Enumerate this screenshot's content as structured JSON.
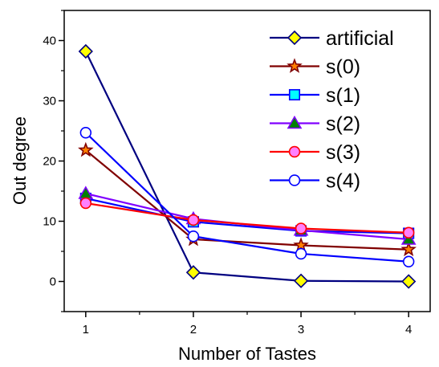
{
  "chart_data": {
    "type": "line",
    "title": "",
    "xlabel": "Number of Tastes",
    "ylabel": "Out degree",
    "xlim": [
      0.8,
      4.2
    ],
    "ylim": [
      -5,
      45
    ],
    "x": [
      1,
      2,
      3,
      4
    ],
    "x_ticks": [
      "1",
      "2",
      "3",
      "4"
    ],
    "y_ticks": [
      "0",
      "10",
      "20",
      "30",
      "40"
    ],
    "grid": false,
    "legend_position": "top-right",
    "series": [
      {
        "name": "artificial",
        "values": [
          38.2,
          1.5,
          0.1,
          0.0
        ],
        "color": "#000080",
        "marker": "diamond",
        "marker_fill": "#ffff00"
      },
      {
        "name": "s(0)",
        "values": [
          21.8,
          7.0,
          6.0,
          5.3
        ],
        "color": "#800000",
        "marker": "star",
        "marker_fill": "#ff8000"
      },
      {
        "name": "s(1)",
        "values": [
          13.8,
          9.9,
          8.4,
          8.0
        ],
        "color": "#0000ff",
        "marker": "square",
        "marker_fill": "#00ffff"
      },
      {
        "name": "s(2)",
        "values": [
          14.6,
          10.4,
          8.5,
          7.0
        ],
        "color": "#8000ff",
        "marker": "triangle",
        "marker_fill": "#008000"
      },
      {
        "name": "s(3)",
        "values": [
          13.0,
          10.2,
          8.8,
          8.1
        ],
        "color": "#ff0000",
        "marker": "circle",
        "marker_fill": "#ff80ff"
      },
      {
        "name": "s(4)",
        "values": [
          24.7,
          7.5,
          4.6,
          3.3
        ],
        "color": "#0000ff",
        "marker": "circle",
        "marker_fill": "#ffffff"
      }
    ]
  }
}
